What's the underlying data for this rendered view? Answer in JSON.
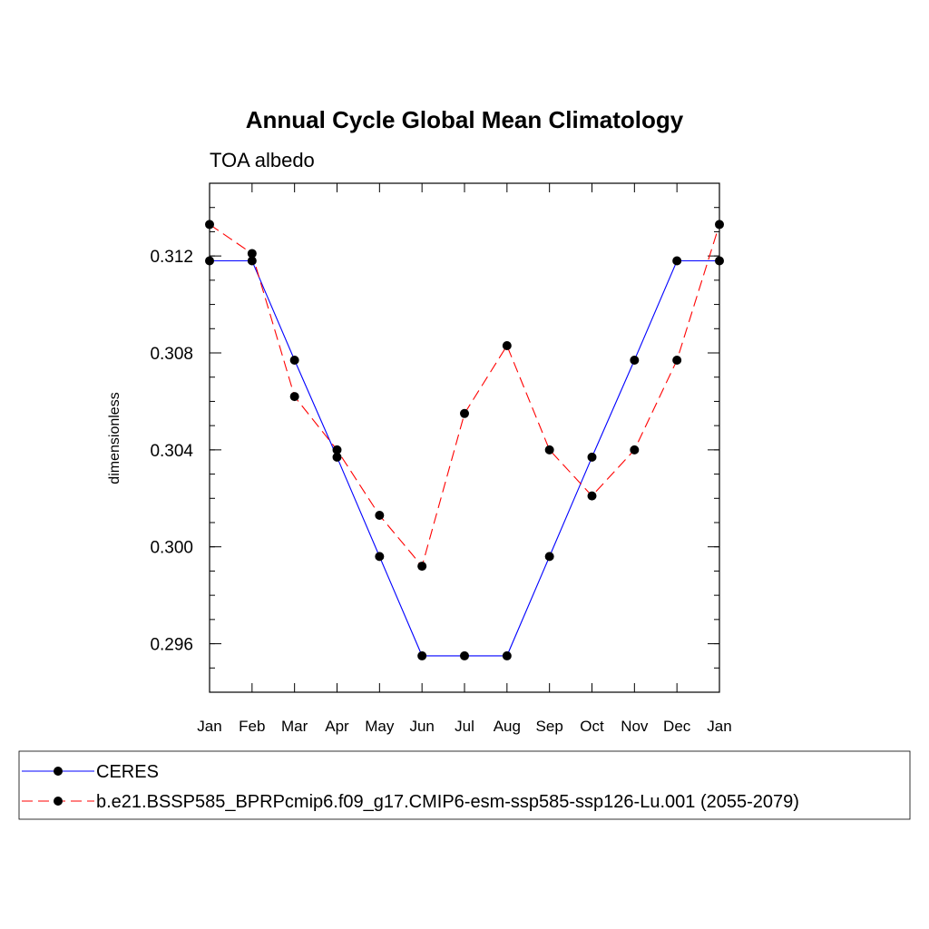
{
  "chart_data": {
    "type": "line",
    "title": "Annual Cycle Global Mean Climatology",
    "subtitle": "TOA albedo",
    "xlabel": "",
    "ylabel": "dimensionless",
    "categories": [
      "Jan",
      "Feb",
      "Mar",
      "Apr",
      "May",
      "Jun",
      "Jul",
      "Aug",
      "Sep",
      "Oct",
      "Nov",
      "Dec",
      "Jan"
    ],
    "ylim": [
      0.294,
      0.315
    ],
    "yticks": [
      0.296,
      0.3,
      0.304,
      0.308,
      0.312
    ],
    "ytick_labels": [
      "0.296",
      "0.300",
      "0.304",
      "0.308",
      "0.312"
    ],
    "legend_placement": "bottom",
    "series": [
      {
        "name": "CERES",
        "color": "#0000ff",
        "dash": "solid",
        "values": [
          0.3118,
          0.3118,
          0.3077,
          0.3037,
          0.2996,
          0.2955,
          0.2955,
          0.2955,
          0.2996,
          0.3037,
          0.3077,
          0.3118,
          0.3118
        ]
      },
      {
        "name": "b.e21.BSSP585_BPRPcmip6.f09_g17.CMIP6-esm-ssp585-ssp126-Lu.001 (2055-2079)",
        "color": "#ff0000",
        "dash": "dashed",
        "values": [
          0.3133,
          0.3121,
          0.3062,
          0.304,
          0.3013,
          0.2992,
          0.3055,
          0.3083,
          0.304,
          0.3021,
          0.304,
          0.3077,
          0.3133
        ]
      }
    ]
  }
}
